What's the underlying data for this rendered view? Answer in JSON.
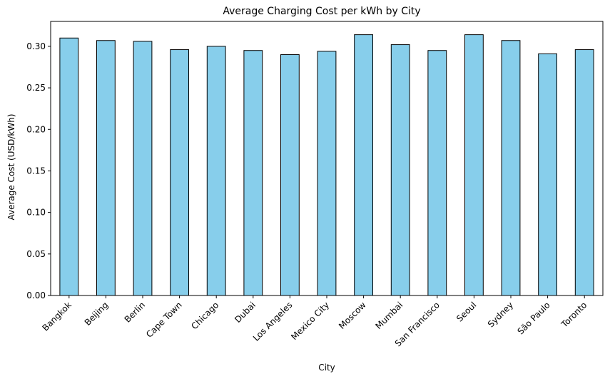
{
  "chart_data": {
    "type": "bar",
    "title": "Average Charging Cost per kWh by City",
    "xlabel": "City",
    "ylabel": "Average Cost (USD/kWh)",
    "categories": [
      "Bangkok",
      "Beijing",
      "Berlin",
      "Cape Town",
      "Chicago",
      "Dubai",
      "Los Angeles",
      "Mexico City",
      "Moscow",
      "Mumbai",
      "San Francisco",
      "Seoul",
      "Sydney",
      "São Paulo",
      "Toronto"
    ],
    "values": [
      0.31,
      0.307,
      0.306,
      0.296,
      0.3,
      0.295,
      0.29,
      0.294,
      0.314,
      0.302,
      0.295,
      0.314,
      0.307,
      0.291,
      0.296
    ],
    "ylim": [
      0,
      0.33
    ],
    "yticks": [
      "0.00",
      "0.05",
      "0.10",
      "0.15",
      "0.20",
      "0.25",
      "0.30"
    ],
    "grid": false,
    "bar_color": "#87ceeb",
    "edge_color": "#000000"
  }
}
